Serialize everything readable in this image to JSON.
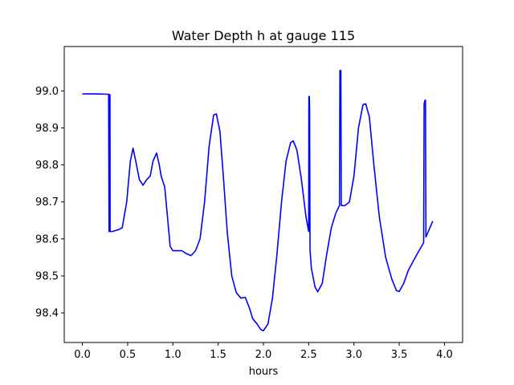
{
  "chart_data": {
    "type": "line",
    "title": "Water Depth h at gauge 115",
    "xlabel": "hours",
    "ylabel": "",
    "xlim": [
      -0.2,
      4.2
    ],
    "ylim": [
      98.32,
      99.12
    ],
    "x_ticks": [
      0.0,
      0.5,
      1.0,
      1.5,
      2.0,
      2.5,
      3.0,
      3.5,
      4.0
    ],
    "x_tick_labels": [
      "0.0",
      "0.5",
      "1.0",
      "1.5",
      "2.0",
      "2.5",
      "3.0",
      "3.5",
      "4.0"
    ],
    "y_ticks": [
      98.4,
      98.5,
      98.6,
      98.7,
      98.8,
      98.9,
      99.0
    ],
    "y_tick_labels": [
      "98.4",
      "98.5",
      "98.6",
      "98.7",
      "98.8",
      "98.9",
      "99.0"
    ],
    "grid": false,
    "series": [
      {
        "color": "#0000ff",
        "points": [
          [
            0.0,
            98.992
          ],
          [
            0.15,
            98.992
          ],
          [
            0.29,
            98.991
          ],
          [
            0.295,
            98.62
          ],
          [
            0.3,
            98.62
          ],
          [
            0.302,
            98.99
          ],
          [
            0.305,
            98.99
          ],
          [
            0.307,
            98.62
          ],
          [
            0.33,
            98.62
          ],
          [
            0.4,
            98.625
          ],
          [
            0.44,
            98.63
          ],
          [
            0.49,
            98.7
          ],
          [
            0.53,
            98.81
          ],
          [
            0.56,
            98.845
          ],
          [
            0.59,
            98.81
          ],
          [
            0.63,
            98.76
          ],
          [
            0.67,
            98.745
          ],
          [
            0.71,
            98.76
          ],
          [
            0.75,
            98.77
          ],
          [
            0.78,
            98.81
          ],
          [
            0.82,
            98.832
          ],
          [
            0.85,
            98.8
          ],
          [
            0.87,
            98.77
          ],
          [
            0.91,
            98.74
          ],
          [
            0.94,
            98.66
          ],
          [
            0.97,
            98.58
          ],
          [
            1.0,
            98.568
          ],
          [
            1.05,
            98.568
          ],
          [
            1.1,
            98.568
          ],
          [
            1.15,
            98.56
          ],
          [
            1.2,
            98.555
          ],
          [
            1.25,
            98.568
          ],
          [
            1.3,
            98.6
          ],
          [
            1.35,
            98.7
          ],
          [
            1.4,
            98.85
          ],
          [
            1.45,
            98.935
          ],
          [
            1.48,
            98.938
          ],
          [
            1.52,
            98.89
          ],
          [
            1.56,
            98.76
          ],
          [
            1.6,
            98.62
          ],
          [
            1.65,
            98.5
          ],
          [
            1.7,
            98.455
          ],
          [
            1.75,
            98.44
          ],
          [
            1.8,
            98.442
          ],
          [
            1.85,
            98.41
          ],
          [
            1.88,
            98.385
          ],
          [
            1.93,
            98.37
          ],
          [
            1.97,
            98.355
          ],
          [
            2.0,
            98.352
          ],
          [
            2.05,
            98.37
          ],
          [
            2.1,
            98.44
          ],
          [
            2.15,
            98.56
          ],
          [
            2.2,
            98.7
          ],
          [
            2.25,
            98.81
          ],
          [
            2.3,
            98.86
          ],
          [
            2.33,
            98.865
          ],
          [
            2.37,
            98.84
          ],
          [
            2.42,
            98.76
          ],
          [
            2.47,
            98.66
          ],
          [
            2.5,
            98.62
          ],
          [
            2.502,
            98.985
          ],
          [
            2.507,
            98.985
          ],
          [
            2.51,
            98.955
          ],
          [
            2.515,
            98.57
          ],
          [
            2.53,
            98.52
          ],
          [
            2.57,
            98.47
          ],
          [
            2.6,
            98.457
          ],
          [
            2.65,
            98.48
          ],
          [
            2.7,
            98.56
          ],
          [
            2.75,
            98.63
          ],
          [
            2.8,
            98.67
          ],
          [
            2.84,
            98.69
          ],
          [
            2.845,
            99.055
          ],
          [
            2.855,
            99.055
          ],
          [
            2.86,
            98.69
          ],
          [
            2.9,
            98.69
          ],
          [
            2.95,
            98.7
          ],
          [
            3.0,
            98.77
          ],
          [
            3.05,
            98.9
          ],
          [
            3.1,
            98.963
          ],
          [
            3.13,
            98.965
          ],
          [
            3.17,
            98.93
          ],
          [
            3.22,
            98.8
          ],
          [
            3.28,
            98.66
          ],
          [
            3.35,
            98.55
          ],
          [
            3.42,
            98.49
          ],
          [
            3.47,
            98.46
          ],
          [
            3.5,
            98.458
          ],
          [
            3.55,
            98.48
          ],
          [
            3.6,
            98.515
          ],
          [
            3.7,
            98.56
          ],
          [
            3.77,
            98.59
          ],
          [
            3.775,
            98.965
          ],
          [
            3.785,
            98.975
          ],
          [
            3.79,
            98.975
          ],
          [
            3.795,
            98.605
          ],
          [
            3.83,
            98.625
          ],
          [
            3.87,
            98.648
          ]
        ]
      }
    ]
  }
}
